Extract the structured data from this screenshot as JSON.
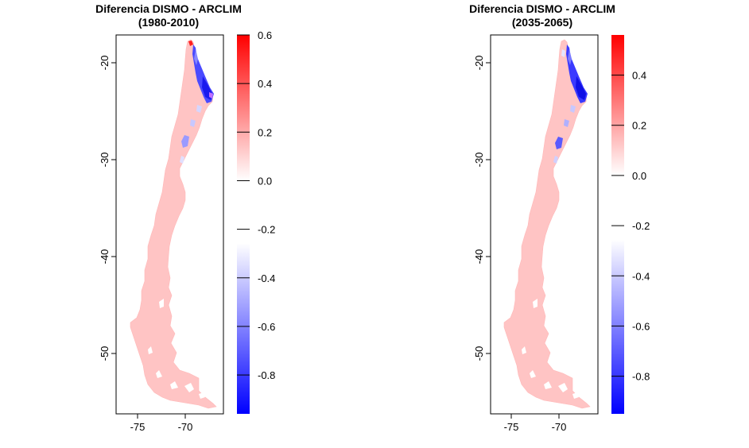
{
  "colors": {
    "land": "#ffc4c4",
    "land_edge": "#ffb6b6",
    "high": "#ff0000",
    "mid": "#ffffff",
    "low": "#0000ff",
    "frame": "#000000"
  },
  "panels": [
    {
      "title": "Diferencia DISMO - ARCLIM",
      "subtitle": "(1980-2010)",
      "x_ticks": [
        "-75",
        "-70"
      ],
      "y_ticks": [
        "-20",
        "-30",
        "-40",
        "-50"
      ],
      "legend": {
        "min": -0.96,
        "max": 0.6,
        "ticks": [
          {
            "v": 0.6,
            "label": "0.6"
          },
          {
            "v": 0.4,
            "label": "0.4"
          },
          {
            "v": 0.2,
            "label": "0.2"
          },
          {
            "v": 0.0,
            "label": "0.0"
          },
          {
            "v": -0.2,
            "label": "-0.2"
          },
          {
            "v": -0.4,
            "label": "-0.4"
          },
          {
            "v": -0.6,
            "label": "-0.6"
          },
          {
            "v": -0.8,
            "label": "-0.8"
          }
        ]
      }
    },
    {
      "title": "Diferencia DISMO - ARCLIM",
      "subtitle": "(2035-2065)",
      "x_ticks": [
        "-75",
        "-70"
      ],
      "y_ticks": [
        "-20",
        "-30",
        "-40",
        "-50"
      ],
      "legend": {
        "min": -0.95,
        "max": 0.56,
        "ticks": [
          {
            "v": 0.4,
            "label": "0.4"
          },
          {
            "v": 0.2,
            "label": "0.2"
          },
          {
            "v": 0.0,
            "label": "0.0"
          },
          {
            "v": -0.2,
            "label": "-0.2"
          },
          {
            "v": -0.4,
            "label": "-0.4"
          },
          {
            "v": -0.6,
            "label": "-0.6"
          },
          {
            "v": -0.8,
            "label": "-0.8"
          }
        ]
      }
    }
  ]
}
